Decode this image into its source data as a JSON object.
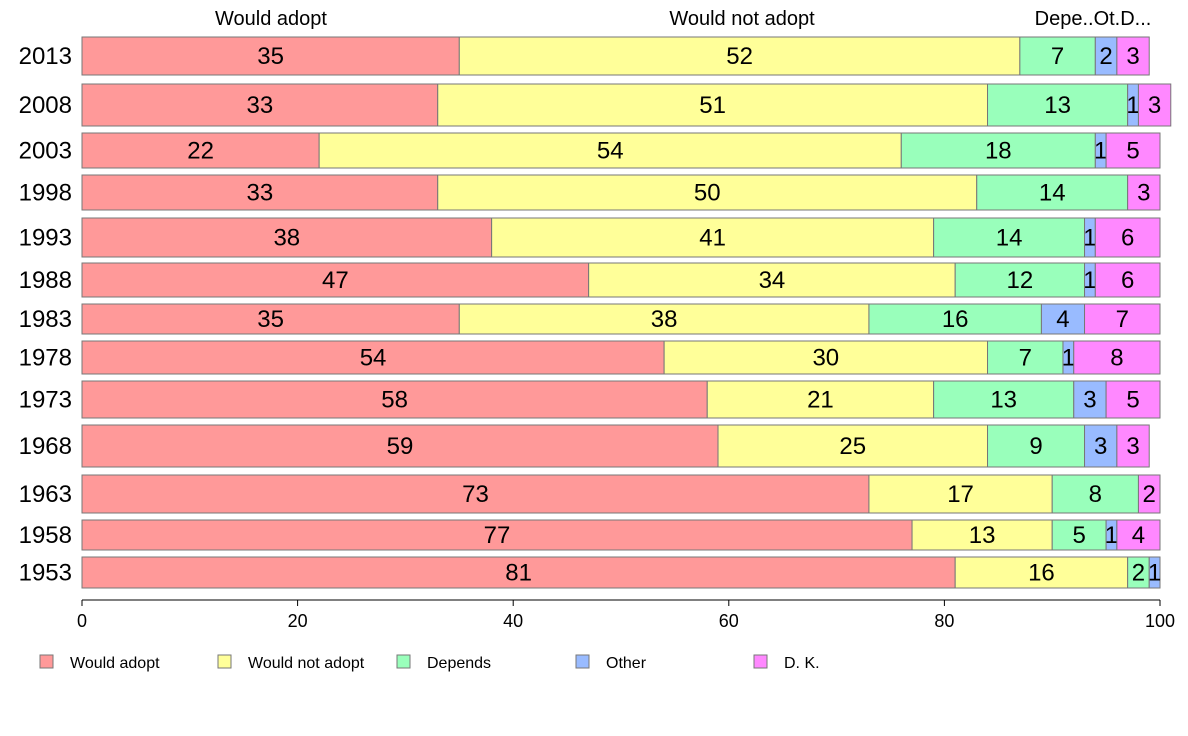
{
  "chart_data": {
    "type": "bar",
    "orientation": "horizontal",
    "stacked": true,
    "title": "",
    "xlabel": "",
    "ylabel": "",
    "xlim": [
      0,
      100
    ],
    "x_ticks": [
      0,
      20,
      40,
      60,
      80,
      100
    ],
    "column_headers": [
      "Would adopt",
      "Would not adopt",
      "Depe..Ot.D..."
    ],
    "categories": [
      "2013",
      "2008",
      "2003",
      "1998",
      "1993",
      "1988",
      "1983",
      "1978",
      "1973",
      "1968",
      "1963",
      "1958",
      "1953"
    ],
    "series": [
      {
        "name": "Would adopt",
        "color": "#ff9999",
        "values": [
          35,
          33,
          22,
          33,
          38,
          47,
          35,
          54,
          58,
          59,
          73,
          77,
          81
        ]
      },
      {
        "name": "Would not adopt",
        "color": "#ffff99",
        "values": [
          52,
          51,
          54,
          50,
          41,
          34,
          38,
          30,
          21,
          25,
          17,
          13,
          16
        ]
      },
      {
        "name": "Depends",
        "color": "#99ffbb",
        "values": [
          7,
          13,
          18,
          14,
          14,
          12,
          16,
          7,
          13,
          9,
          8,
          5,
          2
        ]
      },
      {
        "name": "Other",
        "color": "#99bbff",
        "values": [
          2,
          1,
          1,
          null,
          1,
          1,
          4,
          1,
          3,
          3,
          null,
          1,
          1
        ]
      },
      {
        "name": "D. K.",
        "color": "#ff88ff",
        "values": [
          3,
          3,
          5,
          3,
          6,
          6,
          7,
          8,
          5,
          3,
          2,
          4,
          null
        ]
      }
    ],
    "legend_position": "bottom",
    "grid": false
  }
}
